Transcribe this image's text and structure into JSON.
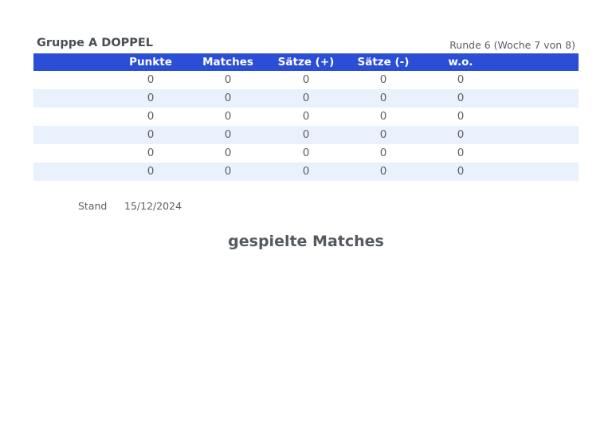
{
  "group_title": "Gruppe A DOPPEL",
  "round_info": "Runde 6 (Woche 7 von 8)",
  "table": {
    "headers": [
      "Punkte",
      "Matches",
      "Sätze (+)",
      "Sätze (-)",
      "w.o."
    ],
    "rows": [
      [
        "0",
        "0",
        "0",
        "0",
        "0"
      ],
      [
        "0",
        "0",
        "0",
        "0",
        "0"
      ],
      [
        "0",
        "0",
        "0",
        "0",
        "0"
      ],
      [
        "0",
        "0",
        "0",
        "0",
        "0"
      ],
      [
        "0",
        "0",
        "0",
        "0",
        "0"
      ],
      [
        "0",
        "0",
        "0",
        "0",
        "0"
      ]
    ]
  },
  "stand": {
    "label": "Stand",
    "date": "15/12/2024"
  },
  "section_title": "gespielte Matches",
  "colors": {
    "header_bg": "#2b4ed6",
    "row_alt_bg": "#e8f1fc",
    "text": "#555a60"
  }
}
